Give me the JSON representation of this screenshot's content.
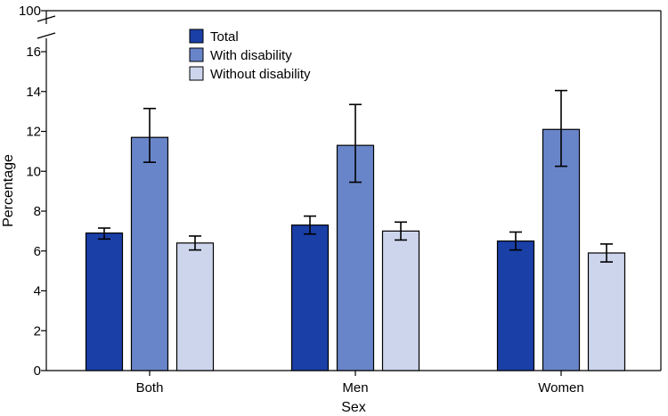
{
  "chart_data": {
    "type": "bar",
    "title": "",
    "xlabel": "Sex",
    "ylabel": "Percentage",
    "categories": [
      "Both",
      "Men",
      "Women"
    ],
    "ylim": [
      0,
      16
    ],
    "y_break_to": 100,
    "yticks": [
      "0",
      "2",
      "4",
      "6",
      "8",
      "10",
      "12",
      "14",
      "16"
    ],
    "ytick_top": "100",
    "legend_position": "top-center",
    "error_bars": true,
    "series": [
      {
        "name": "Total",
        "color": "#1a3fa6",
        "values": [
          6.9,
          7.3,
          6.5
        ],
        "ci_low": [
          6.6,
          6.85,
          6.05
        ],
        "ci_high": [
          7.15,
          7.75,
          6.95
        ]
      },
      {
        "name": "With disability",
        "color": "#6985ca",
        "values": [
          11.7,
          11.3,
          12.1
        ],
        "ci_low": [
          10.45,
          9.45,
          10.25
        ],
        "ci_high": [
          13.15,
          13.35,
          14.05
        ]
      },
      {
        "name": "Without disability",
        "color": "#ccd5ec",
        "values": [
          6.4,
          7.0,
          5.9
        ],
        "ci_low": [
          6.05,
          6.55,
          5.45
        ],
        "ci_high": [
          6.75,
          7.45,
          6.35
        ]
      }
    ]
  }
}
